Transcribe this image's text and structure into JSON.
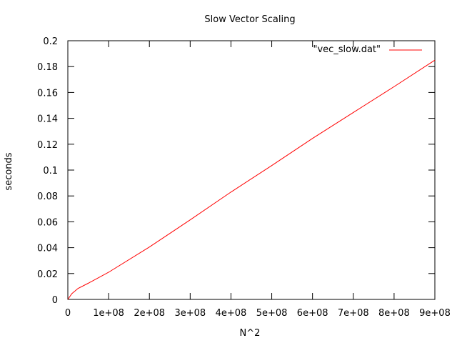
{
  "chart_data": {
    "type": "line",
    "title": "Slow Vector Scaling",
    "xlabel": "N^2",
    "ylabel": "seconds",
    "xlim": [
      0,
      900000000
    ],
    "ylim": [
      0,
      0.2
    ],
    "xticks": [
      {
        "value": 0,
        "label": "0"
      },
      {
        "value": 100000000,
        "label": "1e+08"
      },
      {
        "value": 200000000,
        "label": "2e+08"
      },
      {
        "value": 300000000,
        "label": "3e+08"
      },
      {
        "value": 400000000,
        "label": "4e+08"
      },
      {
        "value": 500000000,
        "label": "5e+08"
      },
      {
        "value": 600000000,
        "label": "6e+08"
      },
      {
        "value": 700000000,
        "label": "7e+08"
      },
      {
        "value": 800000000,
        "label": "8e+08"
      },
      {
        "value": 900000000,
        "label": "9e+08"
      }
    ],
    "yticks": [
      {
        "value": 0,
        "label": "0"
      },
      {
        "value": 0.02,
        "label": "0.02"
      },
      {
        "value": 0.04,
        "label": "0.04"
      },
      {
        "value": 0.06,
        "label": "0.06"
      },
      {
        "value": 0.08,
        "label": "0.08"
      },
      {
        "value": 0.1,
        "label": "0.1"
      },
      {
        "value": 0.12,
        "label": "0.12"
      },
      {
        "value": 0.14,
        "label": "0.14"
      },
      {
        "value": 0.16,
        "label": "0.16"
      },
      {
        "value": 0.18,
        "label": "0.18"
      },
      {
        "value": 0.2,
        "label": "0.2"
      }
    ],
    "grid": false,
    "legend_position": "top-right",
    "series": [
      {
        "name": "\"vec_slow.dat\"",
        "color": "#ff0000",
        "x": [
          0,
          10000000,
          25000000,
          50000000,
          100000000,
          200000000,
          300000000,
          400000000,
          500000000,
          600000000,
          700000000,
          800000000,
          900000000
        ],
        "y": [
          0,
          0.0045,
          0.0085,
          0.0125,
          0.021,
          0.0405,
          0.0615,
          0.083,
          0.1035,
          0.1245,
          0.1445,
          0.1645,
          0.185
        ]
      }
    ]
  }
}
